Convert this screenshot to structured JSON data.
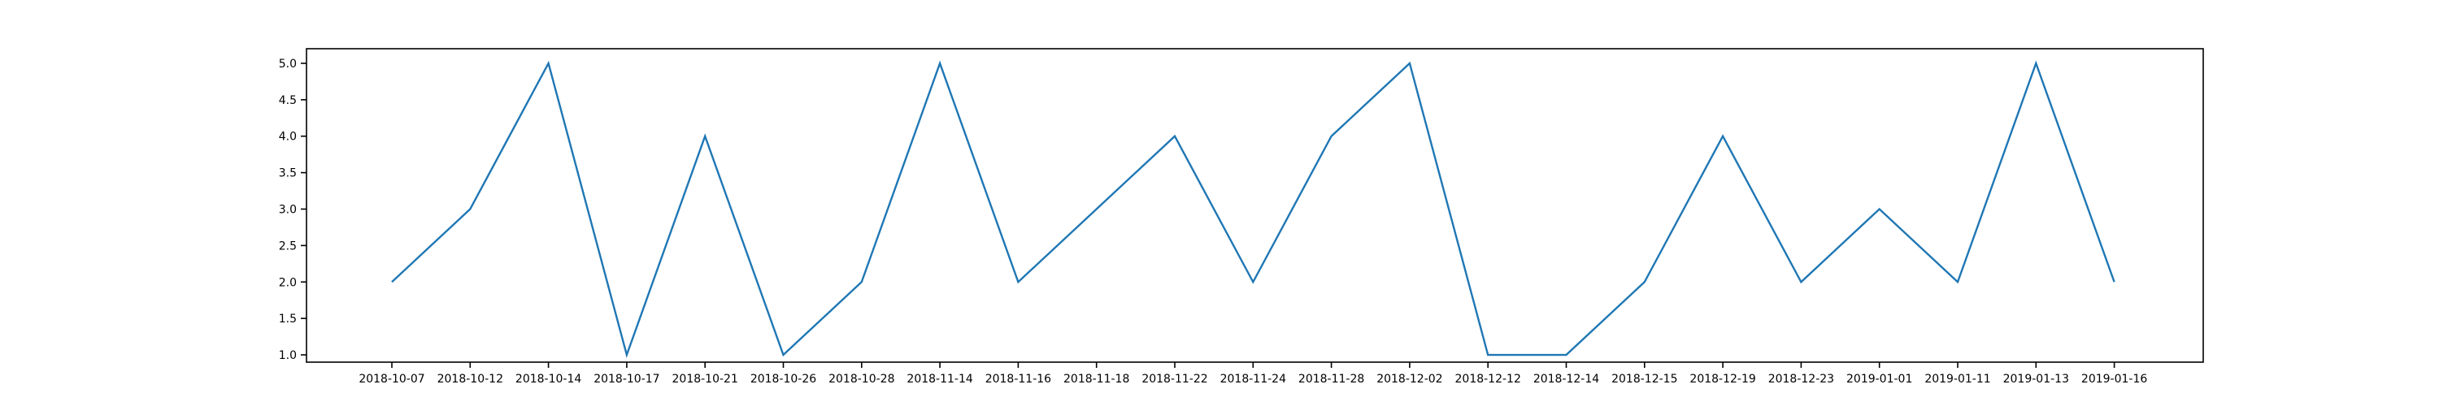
{
  "chart_data": {
    "type": "line",
    "title": "",
    "xlabel": "",
    "ylabel": "",
    "x": [
      "2018-10-07",
      "2018-10-12",
      "2018-10-14",
      "2018-10-17",
      "2018-10-21",
      "2018-10-26",
      "2018-10-28",
      "2018-11-14",
      "2018-11-16",
      "2018-11-18",
      "2018-11-22",
      "2018-11-24",
      "2018-11-28",
      "2018-12-02",
      "2018-12-12",
      "2018-12-14",
      "2018-12-15",
      "2018-12-19",
      "2018-12-23",
      "2019-01-01",
      "2019-01-11",
      "2019-01-13",
      "2019-01-16"
    ],
    "series": [
      {
        "values": [
          2,
          3,
          5,
          1,
          4,
          1,
          2,
          5,
          2,
          3,
          4,
          2,
          4,
          5,
          1,
          1,
          2,
          4,
          2,
          3,
          2,
          5,
          2
        ],
        "color": "#1f77b4"
      }
    ],
    "yticks": [
      "1.0",
      "1.5",
      "2.0",
      "2.5",
      "3.0",
      "3.5",
      "4.0",
      "4.5",
      "5.0"
    ],
    "ylim": [
      0.9,
      5.2
    ],
    "grid": false,
    "legend": "none"
  }
}
